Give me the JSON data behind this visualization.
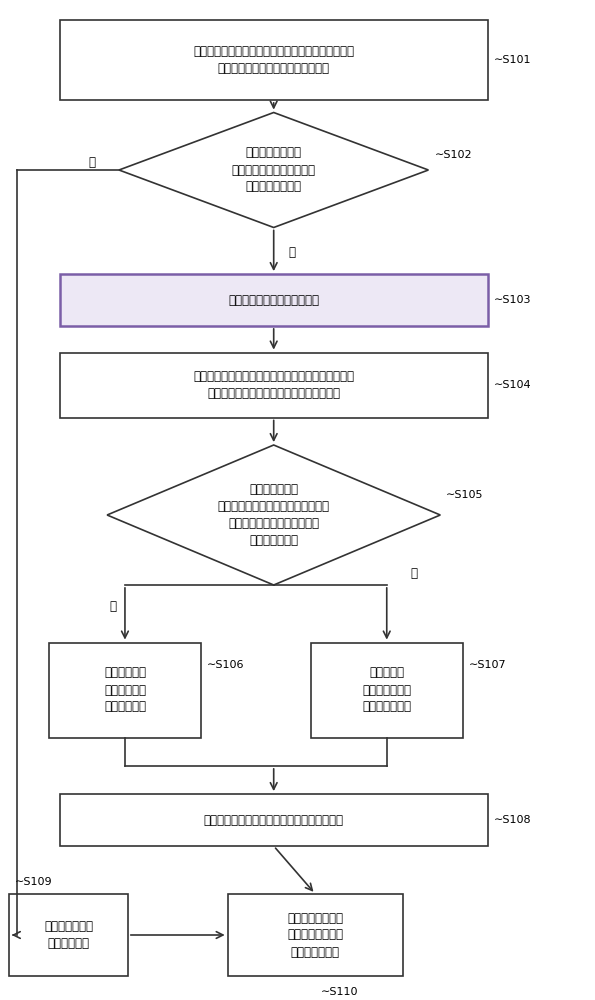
{
  "bg_color": "#ffffff",
  "box_color": "#ffffff",
  "box_edge_color": "#333333",
  "diamond_color": "#ffffff",
  "diamond_edge_color": "#333333",
  "purple_box_color": "#ede8f5",
  "purple_box_edge_color": "#7b5ea7",
  "arrow_color": "#333333",
  "text_color": "#000000",
  "s101_text": "获取视频编码中的深度编码单元的划分深度深度编码\n单元对应的亮度编码单元的划分深度",
  "s102_text": "判断亮度编码单元\n的划分深度是否大于深度编\n码单元的划分深度",
  "s103_text": "继承亮度编码单元的运动信息",
  "s104_text": "分别计算继承亮度编码单元分割信息与不继承亮度编\n码单元分割信息两种编码模式的率失真代价",
  "s105_text": "判断继承亮度编\n码单元分割信息的率失真代价是否小\n于不继承亮度编码单元分割信\n息的率失真代价",
  "s106_text": "选择继承亮度\n编码单元分割\n信息进行编码",
  "s107_text": "选择不继承\n亮度编码单元分\n割信息进行编码",
  "s108_text": "根据选择的编码模式编码分割信息继承标志位",
  "s109_text": "继承亮度编码单\n元的运动信息",
  "s110_text": "根据选择的编码模\n式对当前的深度编\n码单元进行编码",
  "yes_text": "是",
  "no_text": "否"
}
